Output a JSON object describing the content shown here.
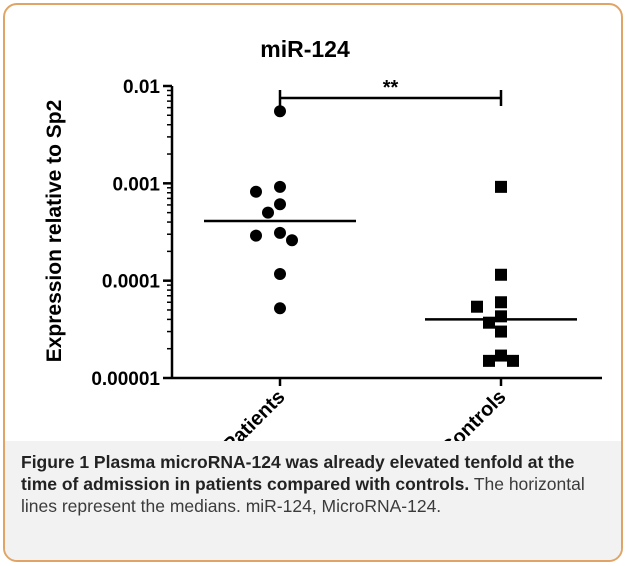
{
  "chart_data": {
    "type": "scatter",
    "title": "miR-124",
    "xlabel": "",
    "ylabel": "Expression relative to Sp2",
    "y_scale": "log",
    "ylim": [
      1e-05,
      0.01
    ],
    "y_ticks": [
      "0.01",
      "0.001",
      "0.0001",
      "0.00001"
    ],
    "y_tick_values": [
      0.01,
      0.001,
      0.0001,
      1e-05
    ],
    "categories": [
      "Patients",
      "Controls"
    ],
    "series": [
      {
        "category": "Patients",
        "marker": "circle",
        "values": [
          0.0055,
          0.00092,
          0.00082,
          0.00061,
          0.0005,
          0.00031,
          0.00029,
          0.00026,
          0.000117,
          5.2e-05
        ],
        "median": 0.00041
      },
      {
        "category": "Controls",
        "marker": "square",
        "values": [
          0.00092,
          0.000115,
          6e-05,
          5.4e-05,
          4.3e-05,
          3.7e-05,
          3e-05,
          1.7e-05,
          1.5e-05,
          1.5e-05
        ],
        "median": 4e-05
      }
    ],
    "significance": "**",
    "grid": false,
    "colors": {
      "marker": "#000000",
      "frame_border": "#e0a566",
      "caption_bg": "#f2f2f2"
    }
  },
  "caption": {
    "lead": "Figure 1 Plasma microRNA-124 was already elevated tenfold at the time of admission in patients compared with controls.",
    "body": "The horizontal lines represent the medians. miR-124, MicroRNA-124."
  }
}
